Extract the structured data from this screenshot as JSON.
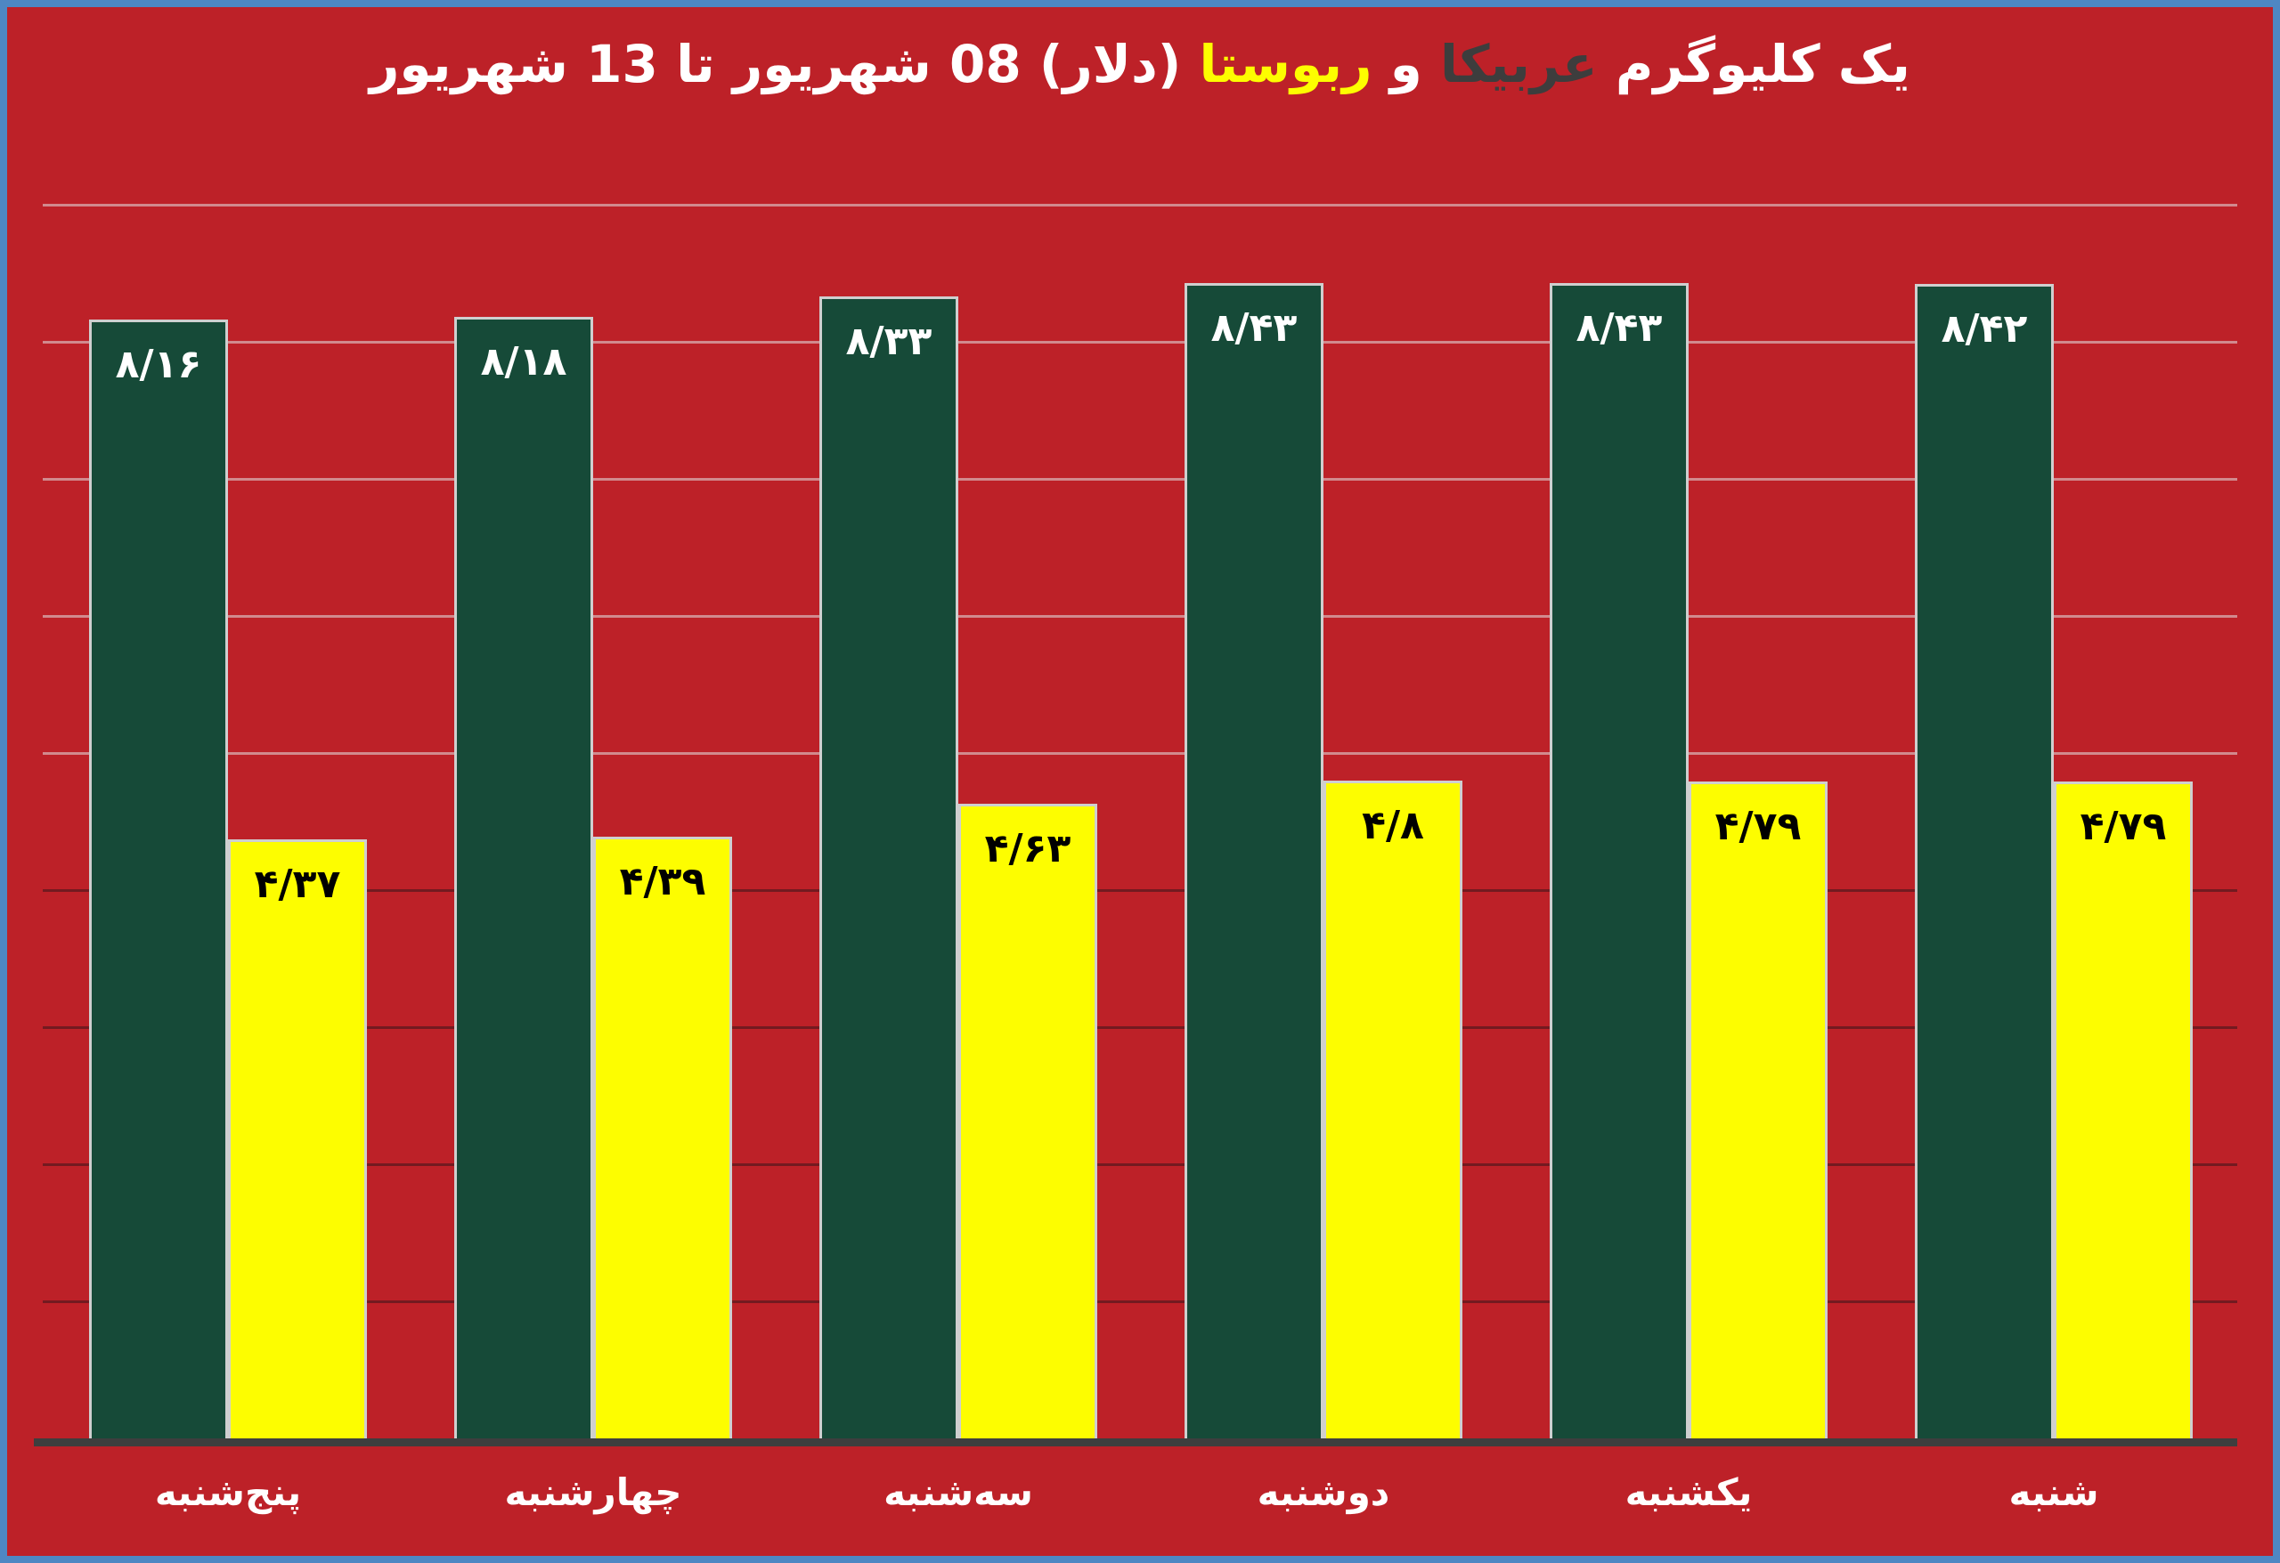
{
  "title": {
    "part1": "یک کلیوگرم",
    "arabica": "عربیکا",
    "conj": "و",
    "robusta": "ربوستا",
    "part2": "(دلار) 08 شهریور تا 13 شهریور"
  },
  "colors": {
    "background": "#bd2128",
    "frame_blue": "#4e87c3",
    "arabica_green": "#164a38",
    "robusta_yellow": "#fdfd00",
    "axis_dark": "#3e3e3e",
    "arabica_label_text": "#ffffff",
    "robusta_label_text": "#000000",
    "title_arabica_text": "#3d3d3d",
    "title_robusta_text": "#fdfd00"
  },
  "chart_data": {
    "type": "bar",
    "direction": "rtl",
    "title": "یک کلیوگرم عربیکا و ربوستا (دلار) 08 شهریور تا 13 شهریور",
    "categories": [
      "پنج‌شنبه",
      "چهارشنبه",
      "سه‌شنبه",
      "دوشنبه",
      "یکشنبه",
      "شنبه"
    ],
    "series": [
      {
        "name": "عربیکا",
        "color": "#164a38",
        "label_color": "#ffffff",
        "values": [
          8.16,
          8.18,
          8.33,
          8.43,
          8.43,
          8.42
        ],
        "labels": [
          "۸/۱۶",
          "۸/۱۸",
          "۸/۳۳",
          "۸/۴۳",
          "۸/۴۳",
          "۸/۴۲"
        ]
      },
      {
        "name": "ربوستا",
        "color": "#fdfd00",
        "label_color": "#000000",
        "values": [
          4.37,
          4.39,
          4.63,
          4.8,
          4.79,
          4.79
        ],
        "labels": [
          "۴/۳۷",
          "۴/۳۹",
          "۴/۶۳",
          "۴/۸",
          "۴/۷۹",
          "۴/۷۹"
        ]
      }
    ],
    "ylim": [
      0,
      9.6
    ],
    "gridlines": true,
    "gridline_values": [
      1,
      2,
      3,
      4,
      5,
      6,
      7,
      8,
      9
    ],
    "legend": "none"
  }
}
